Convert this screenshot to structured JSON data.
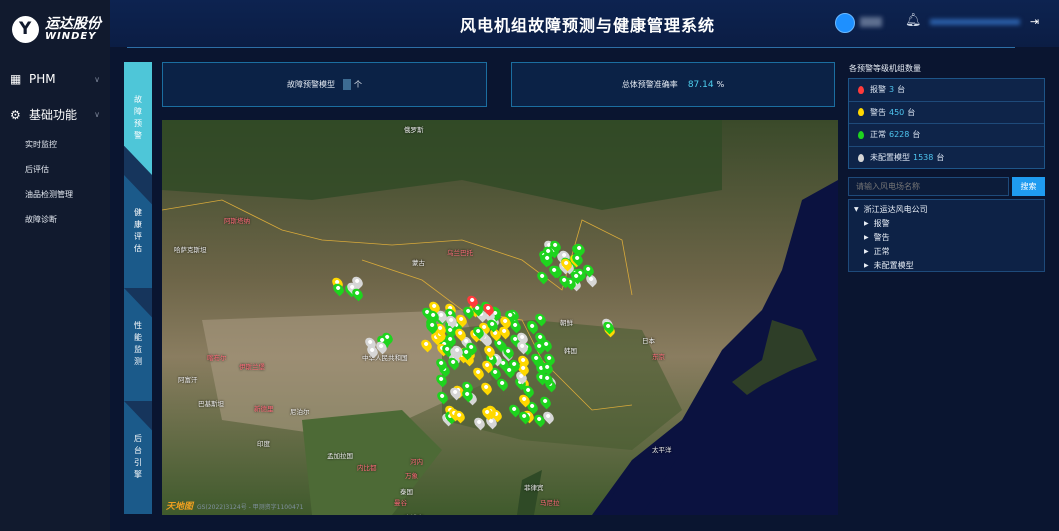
{
  "brand": {
    "name_cn": "运达股份",
    "name_en": "WINDEY"
  },
  "header": {
    "title": "风电机组故障预测与健康管理系统"
  },
  "sidebar": {
    "menus": [
      {
        "label": "PHM",
        "icon": "grid-icon"
      },
      {
        "label": "基础功能",
        "icon": "gear-icon"
      }
    ],
    "sub_items": [
      "实时监控",
      "后评估",
      "油品检测管理",
      "故障诊断"
    ]
  },
  "tabs": [
    {
      "label": "故障预警",
      "active": true
    },
    {
      "label": "健康评估"
    },
    {
      "label": "性能监测"
    },
    {
      "label": "后台引擎"
    }
  ],
  "stats": {
    "model_label": "故障预警模型",
    "model_unit": "个",
    "accuracy_label": "总体预警准确率",
    "accuracy_value": "87.14",
    "accuracy_unit": "%"
  },
  "levels": {
    "title": "各预警等级机组数量",
    "unit": "台",
    "items": [
      {
        "label": "报警",
        "count": "3",
        "color": "#ff3b3b"
      },
      {
        "label": "警告",
        "count": "450",
        "color": "#ffd800"
      },
      {
        "label": "正常",
        "count": "6228",
        "color": "#1ed41e"
      },
      {
        "label": "未配置模型",
        "count": "1538",
        "color": "#d6d6d6"
      }
    ]
  },
  "search": {
    "placeholder": "请输入风电场名称",
    "button": "搜索"
  },
  "tree": {
    "root": "浙江运达风电公司",
    "children": [
      "报警",
      "警告",
      "正常",
      "未配置模型"
    ]
  },
  "map": {
    "labels": [
      "俄罗斯",
      "阿斯塔纳",
      "哈萨克斯坦",
      "蒙古",
      "乌兰巴托",
      "中华人民共和国",
      "朝鲜",
      "韩国",
      "日本",
      "东京",
      "太平洋",
      "菲律宾",
      "马尼拉",
      "河内",
      "万象",
      "泰国",
      "曼谷",
      "柬埔寨",
      "印度",
      "尼泊尔",
      "新德里",
      "伊斯兰堡",
      "喀布尔",
      "阿富汗",
      "巴基斯坦",
      "孟加拉国",
      "内比都"
    ],
    "provider": "天地图",
    "copyright": "GS(2022)3124号 - 甲测资字1100471"
  }
}
